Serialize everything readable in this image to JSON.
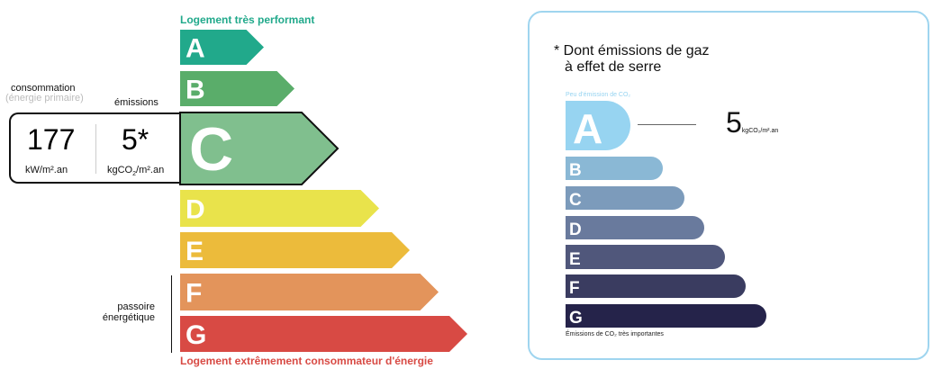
{
  "left": {
    "top_caption": "Logement très performant",
    "bottom_caption": "Logement extrêmement consommateur d'énergie",
    "consumption_label": "consommation",
    "consumption_sub": "(énergie primaire)",
    "emissions_label": "émissions",
    "consumption_value": "177",
    "consumption_unit": "kW/m².an",
    "emissions_value": "5*",
    "emissions_unit_pre": "kgCO",
    "emissions_unit_sub": "2",
    "emissions_unit_post": "/m².an",
    "passoire_line1": "passoire",
    "passoire_line2": "énergétique",
    "current_class": "C",
    "classes": [
      {
        "letter": "A",
        "color": "#21a98b"
      },
      {
        "letter": "B",
        "color": "#5aad6a"
      },
      {
        "letter": "C",
        "color": "#80bf8e"
      },
      {
        "letter": "D",
        "color": "#e9e34b"
      },
      {
        "letter": "E",
        "color": "#ecbb3b"
      },
      {
        "letter": "F",
        "color": "#e3945b"
      },
      {
        "letter": "G",
        "color": "#d84a44"
      }
    ],
    "colors": {
      "top_caption": "#21a98b",
      "bottom_caption": "#d84a44"
    }
  },
  "right": {
    "title_line1": "* Dont émissions de gaz",
    "title_line2": "à effet de serre",
    "top_caption": "Peu d'émission de CO₂",
    "bottom_caption": "Émissions de CO₂ très importantes",
    "value": "5",
    "unit": "kgCO₂/m².an",
    "current_class": "A",
    "classes": [
      {
        "letter": "A",
        "color": "#97d4f1"
      },
      {
        "letter": "B",
        "color": "#8ab8d5"
      },
      {
        "letter": "C",
        "color": "#7c9bbb"
      },
      {
        "letter": "D",
        "color": "#697a9d"
      },
      {
        "letter": "E",
        "color": "#50577b"
      },
      {
        "letter": "F",
        "color": "#3a3c60"
      },
      {
        "letter": "G",
        "color": "#25234a"
      }
    ],
    "border_color": "#9fd5ef"
  }
}
